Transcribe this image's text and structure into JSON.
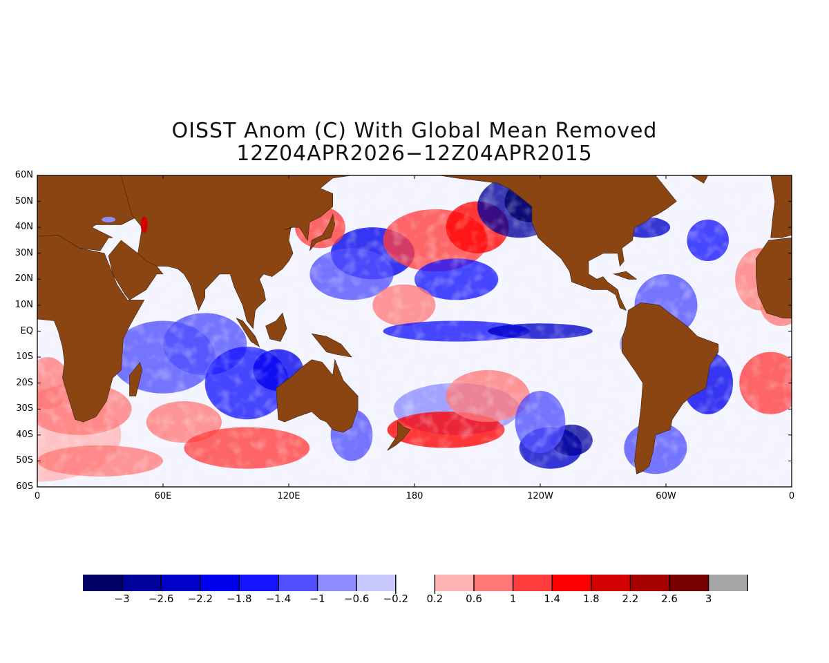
{
  "title": {
    "line1": "OISST Anom (C) With Global Mean Removed",
    "line2": "12Z04APR2026−12Z04APR2015"
  },
  "map": {
    "lat_labels": [
      "60N",
      "50N",
      "40N",
      "30N",
      "20N",
      "10N",
      "EQ",
      "10S",
      "20S",
      "30S",
      "40S",
      "50S",
      "60S"
    ],
    "lon_labels": [
      "0",
      "60E",
      "120E",
      "180",
      "120W",
      "60W",
      "0"
    ],
    "land_color": "#8b4513",
    "missing_color": "#a6a6a6",
    "lat_range": [
      -60,
      60
    ],
    "lon_range": [
      0,
      360
    ]
  },
  "colorbar": {
    "labels": [
      "−3",
      "−2.6",
      "−2.2",
      "−1.8",
      "−1.4",
      "−1",
      "−0.6",
      "−0.2",
      "0.2",
      "0.6",
      "1",
      "1.4",
      "1.8",
      "2.2",
      "2.6",
      "3"
    ],
    "colors": [
      "#000066",
      "#00009a",
      "#0000c8",
      "#0000ee",
      "#1414ff",
      "#5050ff",
      "#8c8cff",
      "#c8c8ff",
      "#ffffff",
      "#ffb4b4",
      "#ff7878",
      "#ff3c3c",
      "#ff0000",
      "#d20000",
      "#a50000",
      "#780000",
      "#a6a6a6"
    ]
  }
}
